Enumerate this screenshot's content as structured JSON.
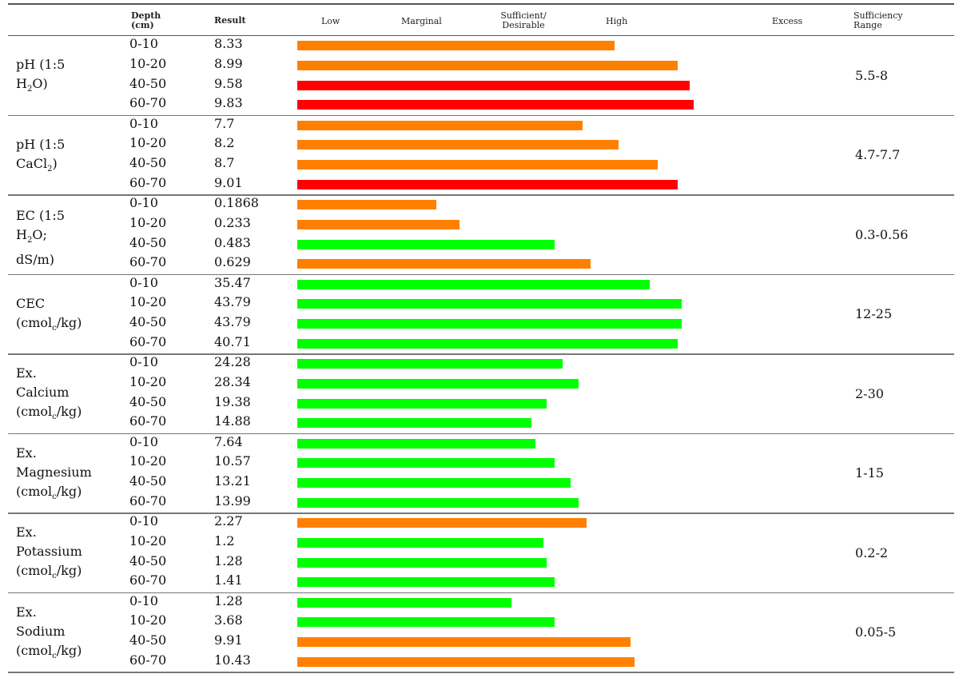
{
  "header": {
    "depth": "Depth\n(cm)",
    "result": "Result",
    "categories": [
      {
        "key": "low",
        "label": "Low"
      },
      {
        "key": "marginal",
        "label": "Marginal"
      },
      {
        "key": "sufficient",
        "label": "Sufficient/\nDesirable"
      },
      {
        "key": "high",
        "label": "High"
      },
      {
        "key": "excess",
        "label": "Excess"
      }
    ],
    "sufficiency": "Sufficiency\nRange"
  },
  "colors": {
    "orange": "#ff8000",
    "red": "#ff0000",
    "green": "#00ff00"
  },
  "chart_data": {
    "type": "bar",
    "orientation": "horizontal",
    "groups": [
      {
        "parameter": [
          "pH (1:5",
          "H",
          "2",
          "O)"
        ],
        "param_format": "h2o",
        "sufficiency_range": "5.5-8",
        "rows": [
          {
            "depth": "0-10",
            "result": "8.33",
            "level": 0.8,
            "color": "orange"
          },
          {
            "depth": "10-20",
            "result": "8.99",
            "level": 0.96,
            "color": "orange"
          },
          {
            "depth": "40-50",
            "result": "9.58",
            "level": 0.99,
            "color": "red"
          },
          {
            "depth": "60-70",
            "result": "9.83",
            "level": 1.0,
            "color": "red"
          }
        ]
      },
      {
        "parameter": [
          "pH (1:5",
          "CaCl",
          "2",
          ")"
        ],
        "param_format": "cacl2",
        "sufficiency_range": "4.7-7.7",
        "rows": [
          {
            "depth": "0-10",
            "result": "7.7",
            "level": 0.72,
            "color": "orange"
          },
          {
            "depth": "10-20",
            "result": "8.2",
            "level": 0.81,
            "color": "orange"
          },
          {
            "depth": "40-50",
            "result": "8.7",
            "level": 0.91,
            "color": "orange"
          },
          {
            "depth": "60-70",
            "result": "9.01",
            "level": 0.96,
            "color": "red"
          }
        ]
      },
      {
        "parameter": [
          "EC (1:5",
          "H",
          "2",
          "O;",
          "dS/m)"
        ],
        "param_format": "ec",
        "sufficiency_range": "0.3-0.56",
        "rows": [
          {
            "depth": "0-10",
            "result": "0.1868",
            "level": 0.35,
            "color": "orange"
          },
          {
            "depth": "10-20",
            "result": "0.233",
            "level": 0.41,
            "color": "orange"
          },
          {
            "depth": "40-50",
            "result": "0.483",
            "level": 0.65,
            "color": "green"
          },
          {
            "depth": "60-70",
            "result": "0.629",
            "level": 0.74,
            "color": "orange"
          }
        ]
      },
      {
        "parameter": [
          "CEC",
          "(cmol",
          "c",
          "/kg)"
        ],
        "param_format": "cmol2",
        "sufficiency_range": "12-25",
        "rows": [
          {
            "depth": "0-10",
            "result": "35.47",
            "level": 0.89,
            "color": "green"
          },
          {
            "depth": "10-20",
            "result": "43.79",
            "level": 0.97,
            "color": "green"
          },
          {
            "depth": "40-50",
            "result": "43.79",
            "level": 0.97,
            "color": "green"
          },
          {
            "depth": "60-70",
            "result": "40.71",
            "level": 0.96,
            "color": "green"
          }
        ]
      },
      {
        "parameter": [
          "Ex.",
          "Calcium",
          "(cmol",
          "c",
          "/kg)"
        ],
        "param_format": "cmol3",
        "sufficiency_range": "2-30",
        "rows": [
          {
            "depth": "0-10",
            "result": "24.28",
            "level": 0.67,
            "color": "green"
          },
          {
            "depth": "10-20",
            "result": "28.34",
            "level": 0.71,
            "color": "green"
          },
          {
            "depth": "40-50",
            "result": "19.38",
            "level": 0.63,
            "color": "green"
          },
          {
            "depth": "60-70",
            "result": "14.88",
            "level": 0.59,
            "color": "green"
          }
        ]
      },
      {
        "parameter": [
          "Ex.",
          "Magnesium",
          "(cmol",
          "c",
          "/kg)"
        ],
        "param_format": "cmol3",
        "sufficiency_range": "1-15",
        "rows": [
          {
            "depth": "0-10",
            "result": "7.64",
            "level": 0.6,
            "color": "green"
          },
          {
            "depth": "10-20",
            "result": "10.57",
            "level": 0.65,
            "color": "green"
          },
          {
            "depth": "40-50",
            "result": "13.21",
            "level": 0.69,
            "color": "green"
          },
          {
            "depth": "60-70",
            "result": "13.99",
            "level": 0.71,
            "color": "green"
          }
        ]
      },
      {
        "parameter": [
          "Ex.",
          "Potassium",
          "(cmol",
          "c",
          "/kg)"
        ],
        "param_format": "cmol3",
        "sufficiency_range": "0.2-2",
        "rows": [
          {
            "depth": "0-10",
            "result": "2.27",
            "level": 0.73,
            "color": "orange"
          },
          {
            "depth": "10-20",
            "result": "1.2",
            "level": 0.62,
            "color": "green"
          },
          {
            "depth": "40-50",
            "result": "1.28",
            "level": 0.63,
            "color": "green"
          },
          {
            "depth": "60-70",
            "result": "1.41",
            "level": 0.65,
            "color": "green"
          }
        ]
      },
      {
        "parameter": [
          "Ex.",
          "Sodium",
          "(cmol",
          "c",
          "/kg)"
        ],
        "param_format": "cmol3",
        "sufficiency_range": "0.05-5",
        "rows": [
          {
            "depth": "0-10",
            "result": "1.28",
            "level": 0.54,
            "color": "green"
          },
          {
            "depth": "10-20",
            "result": "3.68",
            "level": 0.65,
            "color": "green"
          },
          {
            "depth": "40-50",
            "result": "9.91",
            "level": 0.84,
            "color": "orange"
          },
          {
            "depth": "60-70",
            "result": "10.43",
            "level": 0.85,
            "color": "orange"
          }
        ]
      }
    ]
  }
}
